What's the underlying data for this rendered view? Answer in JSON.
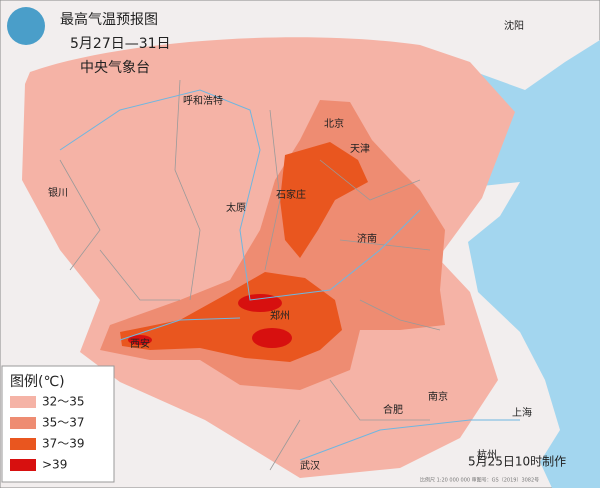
{
  "header": {
    "title": "最高气温预报图",
    "date_range": "5月27日—31日",
    "agency": "中央气象台"
  },
  "legend": {
    "title": "图例(℃)",
    "items": [
      {
        "label": "32～35",
        "color": "#f5b3a6"
      },
      {
        "label": "35～37",
        "color": "#ee8c72"
      },
      {
        "label": "37～39",
        "color": "#e9561f"
      },
      {
        "label": ">39",
        "color": "#d7100f"
      }
    ]
  },
  "cities": [
    {
      "name": "沈阳"
    },
    {
      "name": "呼和浩特"
    },
    {
      "name": "北京"
    },
    {
      "name": "天津"
    },
    {
      "name": "银川"
    },
    {
      "name": "太原"
    },
    {
      "name": "石家庄"
    },
    {
      "name": "济南"
    },
    {
      "name": "郑州"
    },
    {
      "name": "西安"
    },
    {
      "name": "合肥"
    },
    {
      "name": "南京"
    },
    {
      "name": "上海"
    },
    {
      "name": "杭州"
    },
    {
      "name": "武汉"
    }
  ],
  "footnote": "比例尺 1:20 000 000  审图号：GS（2019）3082号",
  "issued": "5月25日10时制作"
}
